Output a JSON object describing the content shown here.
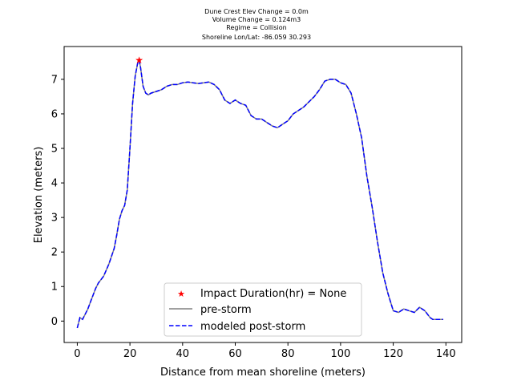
{
  "chart_data": {
    "type": "line",
    "title_lines": [
      "Dune Crest Elev Change = 0.0m",
      "Volume Change = 0.124m3",
      "Regime = Collision",
      "Shoreline Lon/Lat: -86.059 30.293"
    ],
    "xlabel": "Distance from mean shoreline (meters)",
    "ylabel": "Elevation (meters)",
    "xlim": [
      -5,
      146
    ],
    "ylim": [
      -0.62,
      7.95
    ],
    "xticks": [
      0,
      20,
      40,
      60,
      80,
      100,
      120,
      140
    ],
    "yticks": [
      0,
      1,
      2,
      3,
      4,
      5,
      6,
      7
    ],
    "legend_position": "lower-center",
    "legend": [
      "Impact Duration(hr) = None",
      "pre-storm",
      "modeled post-storm"
    ],
    "colors": {
      "pre_storm": "#808080",
      "post_storm": "#0000ff",
      "impact_marker": "#ff0000"
    },
    "impact_point": {
      "x": 23.5,
      "y": 7.55
    },
    "profile_x": [
      0,
      1,
      2,
      3,
      4,
      5,
      6,
      7,
      8,
      10,
      12,
      14,
      15,
      16,
      17,
      18,
      19,
      20,
      21,
      22,
      23,
      23.5,
      24,
      25,
      26,
      27,
      28,
      30,
      32,
      34,
      36,
      38,
      40,
      42,
      44,
      46,
      48,
      50,
      52,
      54,
      56,
      58,
      60,
      62,
      64,
      66,
      68,
      70,
      72,
      74,
      76,
      78,
      80,
      82,
      84,
      86,
      88,
      90,
      92,
      94,
      96,
      98,
      100,
      102,
      104,
      106,
      108,
      110,
      112,
      114,
      116,
      118,
      120,
      122,
      124,
      126,
      128,
      130,
      132,
      134,
      135,
      136,
      137,
      138,
      139
    ],
    "profile_y": [
      -0.2,
      0.1,
      0.05,
      0.2,
      0.35,
      0.55,
      0.75,
      0.95,
      1.1,
      1.3,
      1.65,
      2.1,
      2.5,
      2.95,
      3.2,
      3.35,
      3.8,
      5.0,
      6.3,
      7.1,
      7.5,
      7.55,
      7.35,
      6.8,
      6.6,
      6.55,
      6.6,
      6.65,
      6.7,
      6.8,
      6.85,
      6.85,
      6.9,
      6.92,
      6.9,
      6.88,
      6.9,
      6.92,
      6.85,
      6.7,
      6.4,
      6.3,
      6.4,
      6.3,
      6.25,
      5.95,
      5.85,
      5.85,
      5.75,
      5.65,
      5.6,
      5.7,
      5.8,
      6.0,
      6.1,
      6.2,
      6.35,
      6.5,
      6.7,
      6.95,
      7.0,
      7.0,
      6.9,
      6.85,
      6.6,
      6.0,
      5.3,
      4.2,
      3.3,
      2.3,
      1.4,
      0.8,
      0.3,
      0.25,
      0.35,
      0.3,
      0.25,
      0.4,
      0.3,
      0.1,
      0.05,
      0.05,
      0.05,
      0.05,
      0.05
    ]
  }
}
